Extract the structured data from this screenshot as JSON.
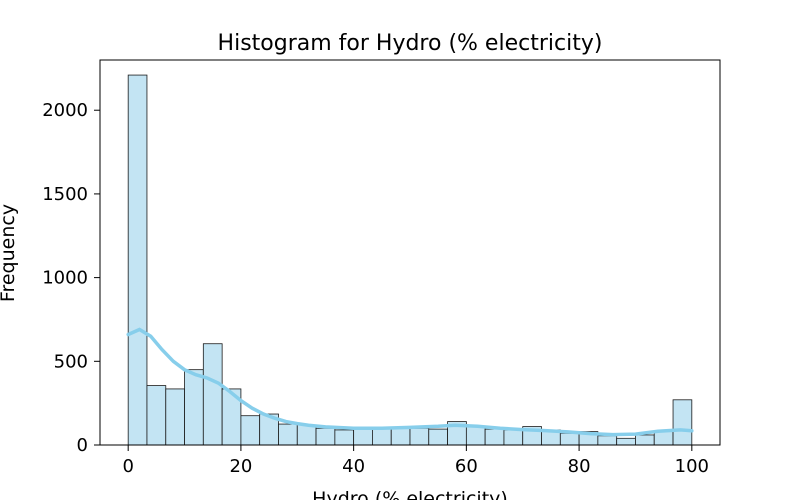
{
  "chart_data": {
    "type": "bar",
    "subtype": "histogram",
    "title": "Histogram for Hydro (% electricity)",
    "xlabel": "Hydro (% electricity)",
    "ylabel": "Frequency",
    "xlim": [
      -5,
      105
    ],
    "ylim": [
      0,
      2300
    ],
    "x_ticks": [
      0,
      20,
      40,
      60,
      80,
      100
    ],
    "y_ticks": [
      0,
      500,
      1000,
      1500,
      2000
    ],
    "grid": false,
    "legend": "none",
    "bin_edges": [
      0,
      3.33,
      6.67,
      10,
      13.33,
      16.67,
      20,
      23.33,
      26.67,
      30,
      33.33,
      36.67,
      40,
      43.33,
      46.67,
      50,
      53.33,
      56.67,
      60,
      63.33,
      66.67,
      70,
      73.33,
      76.67,
      80,
      83.33,
      86.67,
      90,
      93.33,
      96.67,
      100
    ],
    "counts": [
      2210,
      355,
      335,
      450,
      605,
      335,
      175,
      185,
      125,
      120,
      100,
      90,
      100,
      95,
      100,
      100,
      95,
      140,
      110,
      95,
      90,
      110,
      90,
      70,
      80,
      55,
      40,
      60,
      80,
      270
    ],
    "kde": {
      "x": [
        0,
        2,
        4,
        6,
        8,
        10,
        12,
        14,
        16,
        18,
        20,
        22,
        24,
        26,
        28,
        30,
        32,
        35,
        40,
        45,
        50,
        55,
        58,
        62,
        66,
        70,
        74,
        78,
        82,
        86,
        90,
        94,
        98,
        100
      ],
      "y": [
        660,
        690,
        650,
        570,
        500,
        450,
        420,
        400,
        370,
        320,
        265,
        220,
        185,
        160,
        140,
        128,
        118,
        108,
        100,
        100,
        105,
        112,
        118,
        112,
        100,
        92,
        86,
        78,
        68,
        62,
        65,
        82,
        90,
        85
      ]
    },
    "colors": {
      "bar_fill": "#c3e4f3",
      "bar_edge": "#1a1a1a",
      "kde_line": "#87ceeb"
    }
  }
}
